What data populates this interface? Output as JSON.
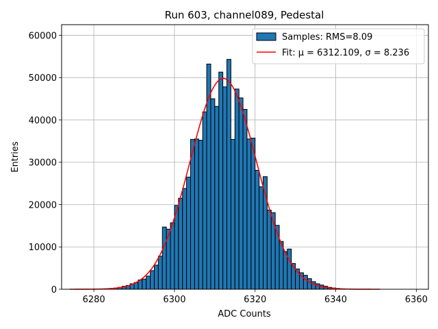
{
  "chart_data": {
    "type": "bar",
    "title": "Run 603, channel089, Pedestal",
    "xlabel": "ADC Counts",
    "ylabel": "Entries",
    "xlim": [
      6272,
      6363
    ],
    "ylim": [
      0,
      62500
    ],
    "xticks": [
      6280,
      6300,
      6320,
      6340,
      6360
    ],
    "yticks": [
      0,
      10000,
      20000,
      30000,
      40000,
      50000,
      60000
    ],
    "xtick_labels": [
      "6280",
      "6300",
      "6320",
      "6340",
      "6360"
    ],
    "ytick_labels": [
      "0",
      "10000",
      "20000",
      "30000",
      "40000",
      "50000",
      "60000"
    ],
    "grid": true,
    "legend": {
      "position": "top-right",
      "hist_label": "Samples: RMS=8.09",
      "fit_label": "Fit: μ = 6312.109, σ = 8.236"
    },
    "histogram": {
      "bin_width": 1,
      "bin_starts": [
        6283,
        6284,
        6285,
        6286,
        6287,
        6288,
        6289,
        6290,
        6291,
        6292,
        6293,
        6294,
        6295,
        6296,
        6297,
        6298,
        6299,
        6300,
        6301,
        6302,
        6303,
        6304,
        6305,
        6306,
        6307,
        6308,
        6309,
        6310,
        6311,
        6312,
        6313,
        6314,
        6315,
        6316,
        6317,
        6318,
        6319,
        6320,
        6321,
        6322,
        6323,
        6324,
        6325,
        6326,
        6327,
        6328,
        6329,
        6330,
        6331,
        6332,
        6333,
        6334,
        6335,
        6336,
        6337,
        6338,
        6339,
        6340,
        6341
      ],
      "values": [
        100,
        200,
        300,
        450,
        700,
        900,
        1300,
        1600,
        2200,
        2400,
        3100,
        4400,
        5700,
        7800,
        14700,
        14200,
        15700,
        19800,
        21500,
        23800,
        26500,
        35400,
        35500,
        35200,
        41900,
        53200,
        45000,
        43200,
        51300,
        47800,
        54300,
        35400,
        47300,
        45200,
        42500,
        35500,
        35700,
        28100,
        24200,
        26600,
        18700,
        18100,
        15100,
        11300,
        8900,
        9500,
        6100,
        4800,
        3900,
        3300,
        2500,
        1800,
        1300,
        1000,
        700,
        450,
        300,
        200,
        100
      ],
      "color": "#1f77b4",
      "edge_color": "#000000"
    },
    "fit": {
      "type": "gaussian",
      "mu": 6312.109,
      "sigma": 8.236,
      "amplitude": 49800,
      "x_range": [
        6274,
        6351
      ],
      "color": "#ff0000"
    }
  }
}
